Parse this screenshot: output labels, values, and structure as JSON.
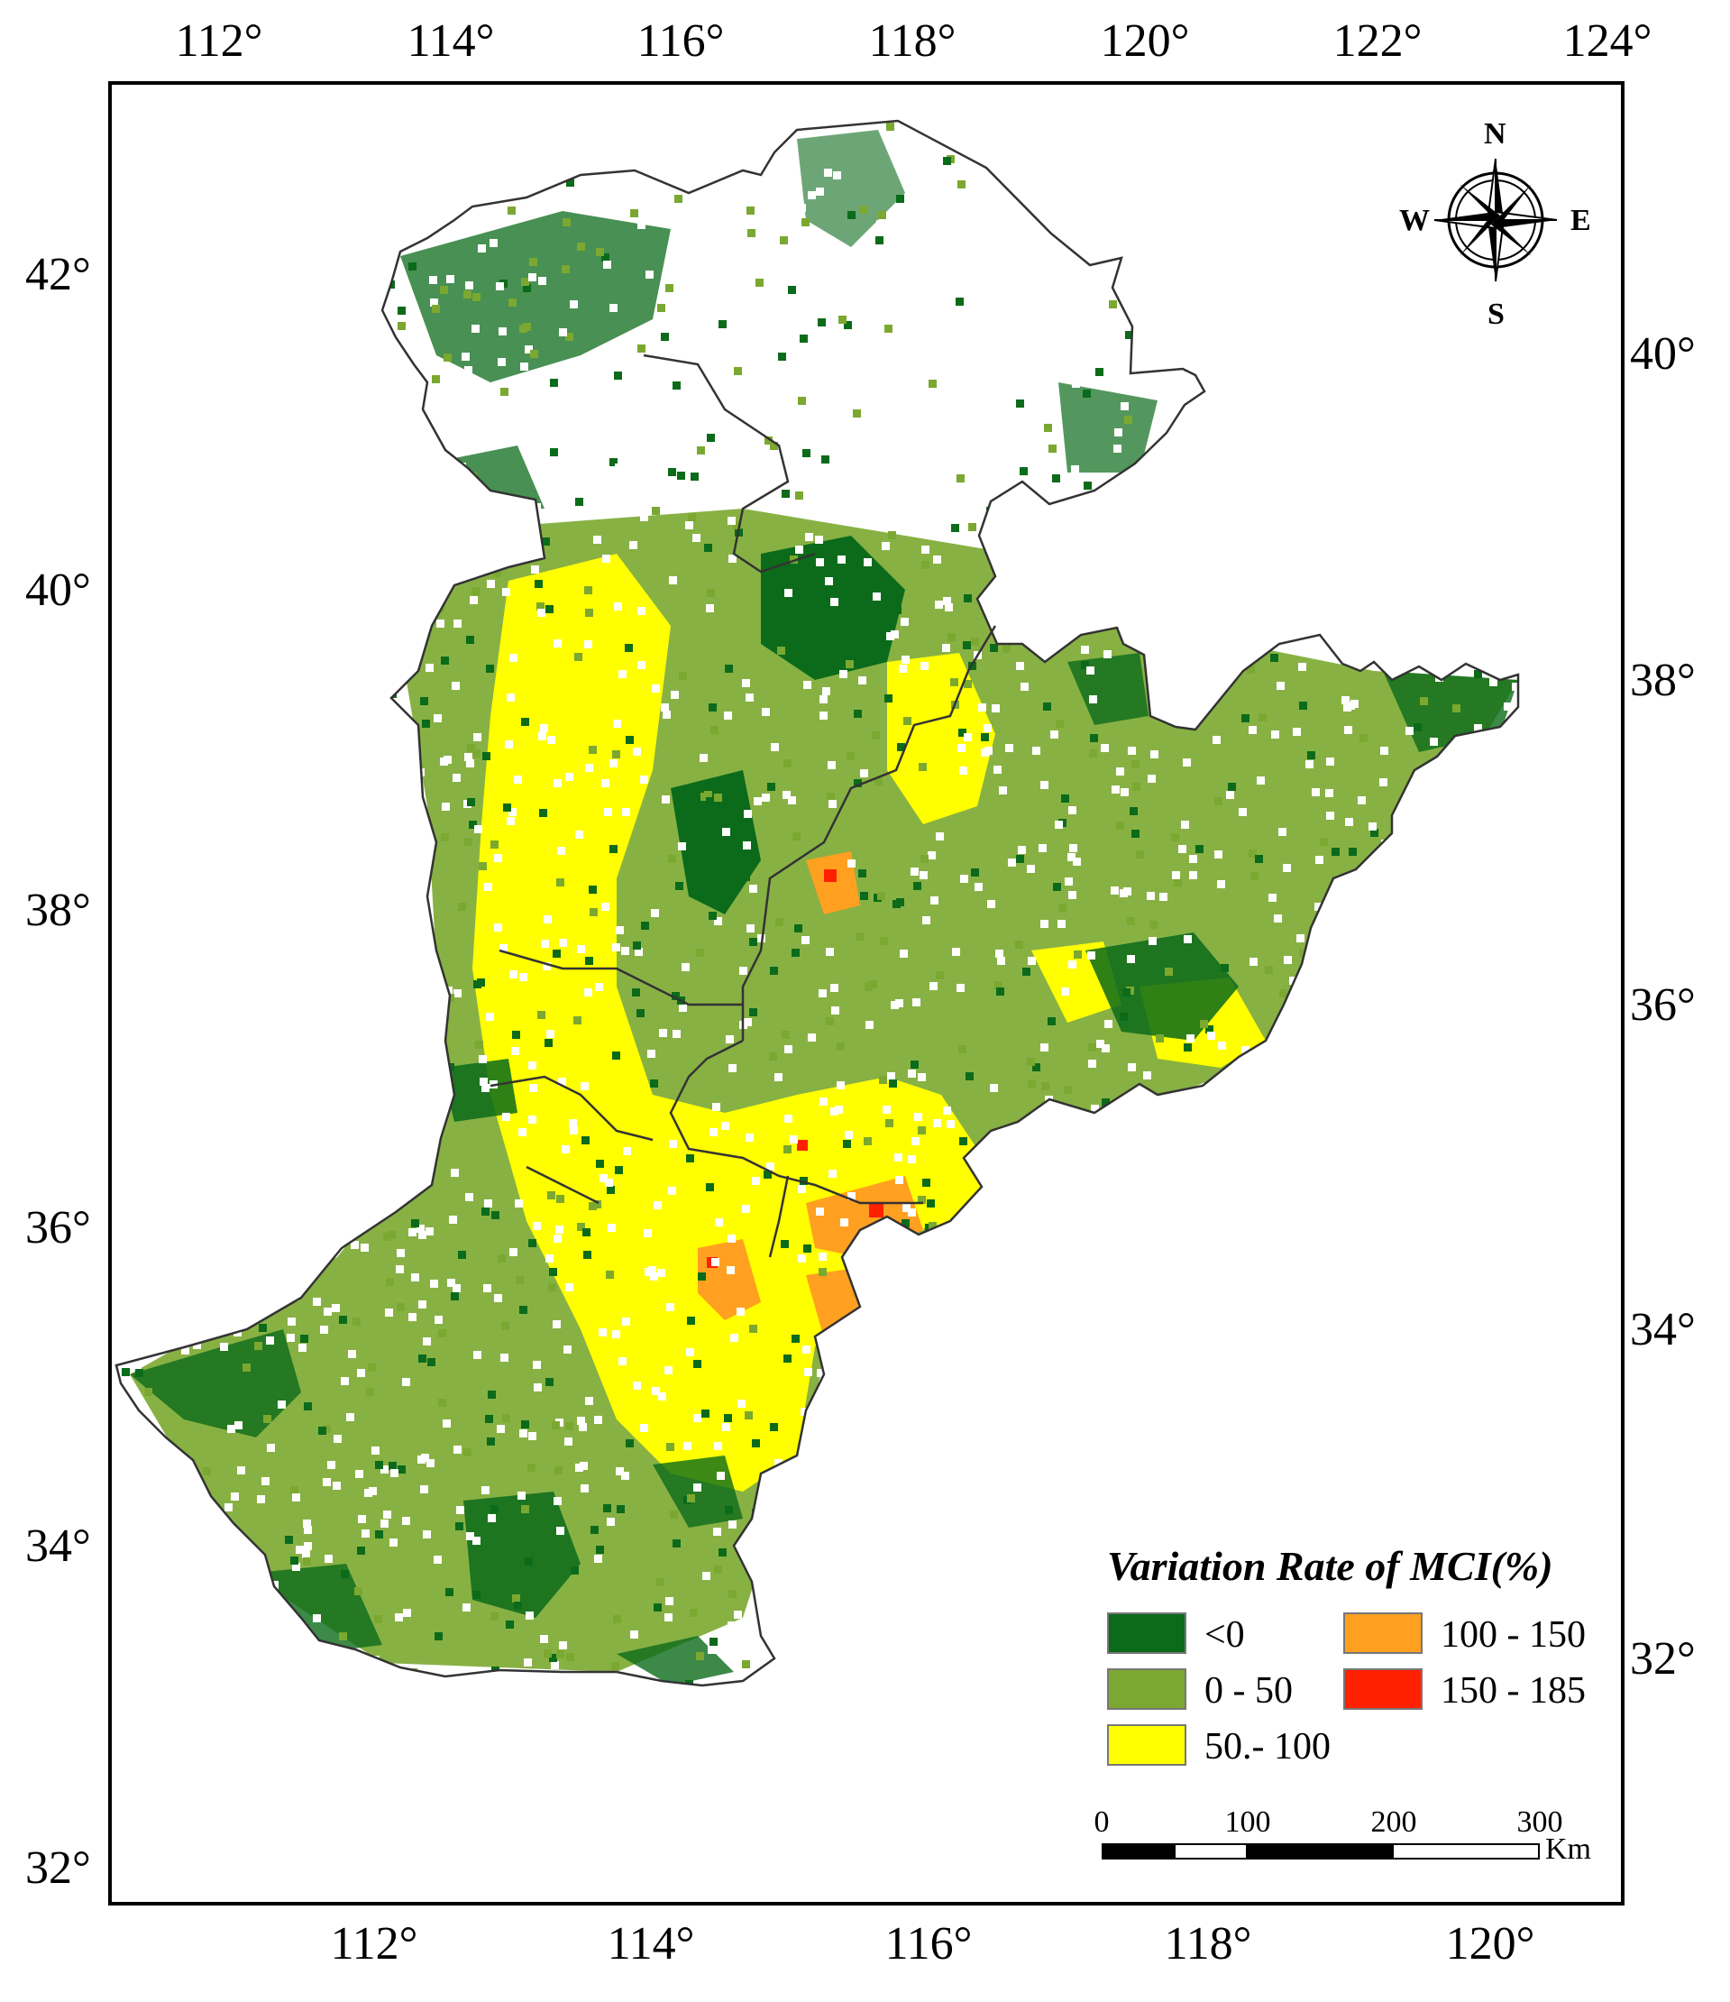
{
  "map": {
    "top_lon_labels": [
      "112°",
      "114°",
      "116°",
      "118°",
      "120°",
      "122°",
      "124°"
    ],
    "bottom_lon_labels": [
      "112°",
      "114°",
      "116°",
      "118°",
      "120°"
    ],
    "left_lat_labels": [
      "42°",
      "40°",
      "38°",
      "36°",
      "34°",
      "32°"
    ],
    "right_lat_labels": [
      "40°",
      "38°",
      "36°",
      "34°",
      "32°"
    ]
  },
  "compass": {
    "north": "N",
    "south": "S",
    "east": "E",
    "west": "W"
  },
  "legend": {
    "title": "Variation Rate of MCI(%)",
    "items": [
      {
        "label": "<0",
        "color": "#0b6b1a"
      },
      {
        "label": "0 - 50",
        "color": "#7ba830"
      },
      {
        "label": "50.- 100",
        "color": "#ffff00"
      },
      {
        "label": "100 - 150",
        "color": "#ffa020"
      },
      {
        "label": "150 - 185",
        "color": "#ff2000"
      }
    ]
  },
  "scale_bar": {
    "ticks": [
      "0",
      "100",
      "200",
      "300"
    ],
    "unit": "Km"
  }
}
